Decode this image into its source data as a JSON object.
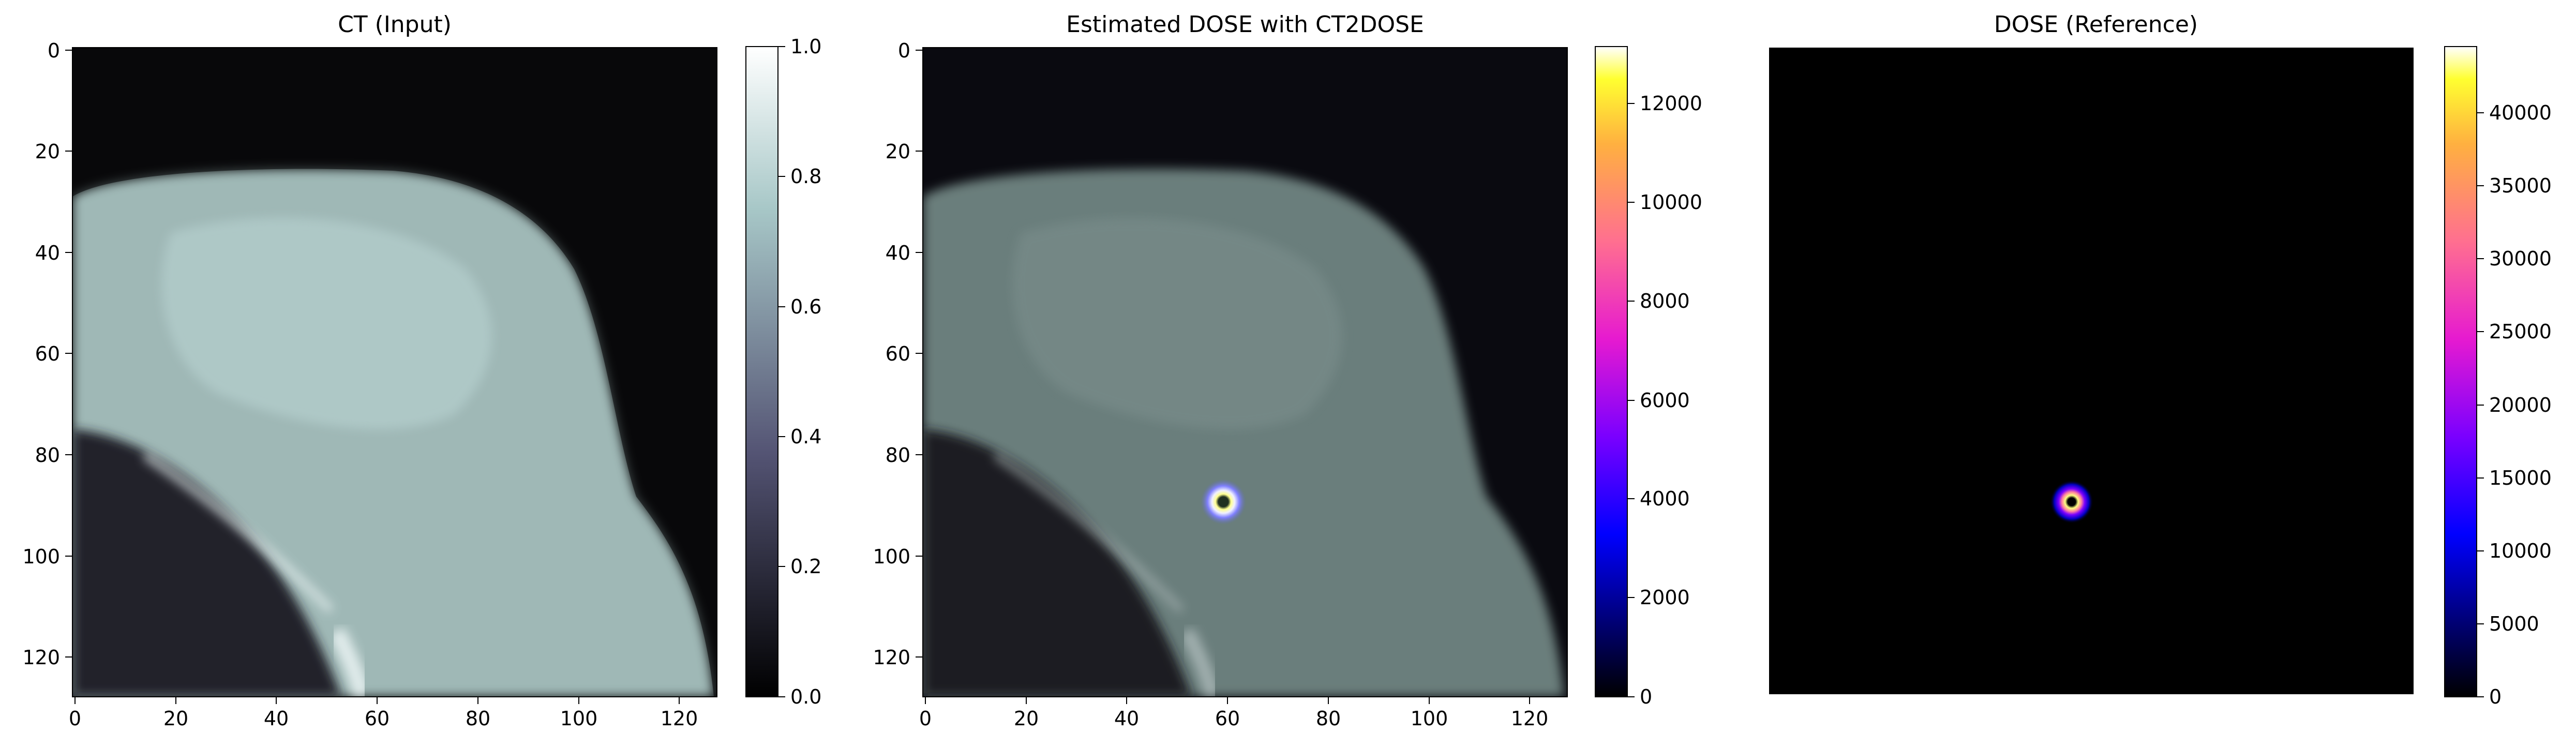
{
  "panels": [
    {
      "title": "CT (Input)",
      "x_ticks": [
        "0",
        "20",
        "40",
        "60",
        "80",
        "100",
        "120"
      ],
      "y_ticks": [
        "0",
        "20",
        "40",
        "60",
        "80",
        "100",
        "120"
      ],
      "colorbar": {
        "colormap": "bone",
        "ticks": [
          "0.0",
          "0.2",
          "0.4",
          "0.6",
          "0.8",
          "1.0"
        ]
      }
    },
    {
      "title": "Estimated DOSE with CT2DOSE",
      "x_ticks": [
        "0",
        "20",
        "40",
        "60",
        "80",
        "100",
        "120"
      ],
      "y_ticks": [
        "0",
        "20",
        "40",
        "60",
        "80",
        "100",
        "120"
      ],
      "colorbar": {
        "colormap": "gnuplot2",
        "ticks": [
          "0",
          "2000",
          "4000",
          "6000",
          "8000",
          "10000",
          "12000"
        ]
      }
    },
    {
      "title": "DOSE (Reference)",
      "colorbar": {
        "colormap": "gnuplot2",
        "ticks": [
          "0",
          "5000",
          "10000",
          "15000",
          "20000",
          "25000",
          "30000",
          "35000",
          "40000"
        ]
      }
    }
  ]
}
